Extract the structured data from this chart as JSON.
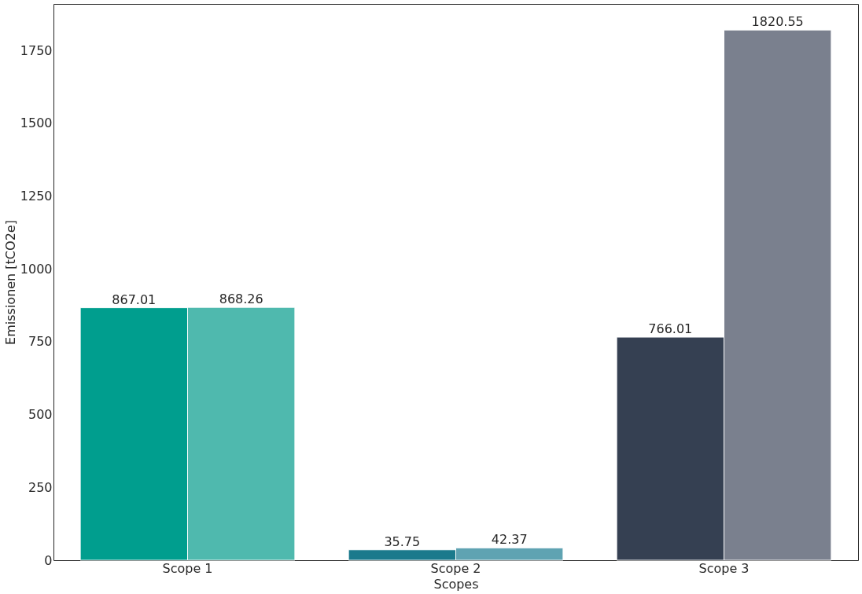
{
  "chart_data": {
    "type": "bar",
    "xlabel": "Scopes",
    "ylabel": "Emissionen [tCO2e]",
    "categories": [
      "Scope 1",
      "Scope 2",
      "Scope 3"
    ],
    "series": [
      {
        "colors": [
          "#009e8e",
          "#1a7a8c",
          "#354052"
        ],
        "values": [
          867.01,
          35.75,
          766.01
        ]
      },
      {
        "colors": [
          "#4fb9ae",
          "#5fa3b2",
          "#7a808e"
        ],
        "values": [
          868.26,
          42.37,
          1820.55
        ]
      }
    ],
    "ylim": [
      0,
      1910
    ],
    "yticks": [
      0,
      250,
      500,
      750,
      1000,
      1250,
      1500,
      1750
    ],
    "grid": false,
    "data_labels": true
  }
}
